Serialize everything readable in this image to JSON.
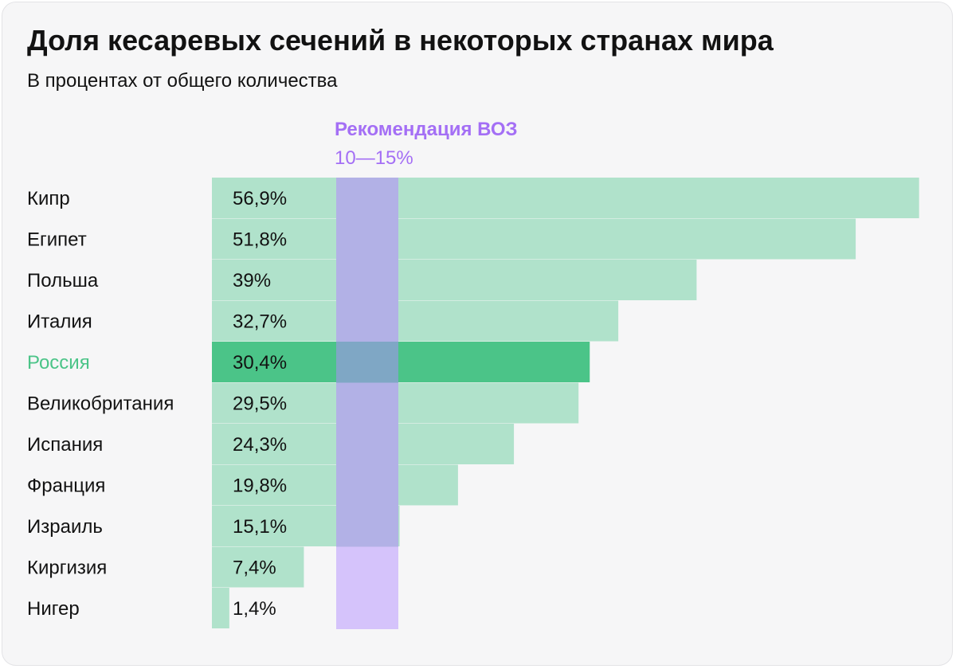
{
  "title": "Доля кесаревых сечений в некоторых странах мира",
  "subtitle": "В процентах от общего количества",
  "chart_data": {
    "type": "bar",
    "orientation": "horizontal",
    "title": "Доля кесаревых сечений в некоторых странах мира",
    "subtitle": "В процентах от общего количества",
    "unit": "%",
    "categories": [
      "Кипр",
      "Египет",
      "Польша",
      "Италия",
      "Россия",
      "Великобритания",
      "Испания",
      "Франция",
      "Израиль",
      "Киргизия",
      "Нигер"
    ],
    "values": [
      56.9,
      51.8,
      39,
      32.7,
      30.4,
      29.5,
      24.3,
      19.8,
      15.1,
      7.4,
      1.4
    ],
    "value_labels": [
      "56,9%",
      "51,8%",
      "39%",
      "32,7%",
      "30,4%",
      "29,5%",
      "24,3%",
      "19,8%",
      "15,1%",
      "7,4%",
      "1,4%"
    ],
    "highlight_category": "Россия",
    "xlim": [
      0,
      57
    ],
    "grid": false,
    "legend": "none",
    "reference_band": {
      "label": "Рекомендация ВОЗ",
      "range_label": "10—15%",
      "from": 10,
      "to": 15
    },
    "colors": {
      "bar": "#b0e2cb",
      "bar_highlight": "#4bc488",
      "band": "#d5c3fb",
      "band_over_bar": "#b2b1e6",
      "band_over_highlight": "#7fa7c5",
      "band_text": "#a46ff5",
      "highlight_text": "#4bc488",
      "text": "#121212"
    }
  }
}
